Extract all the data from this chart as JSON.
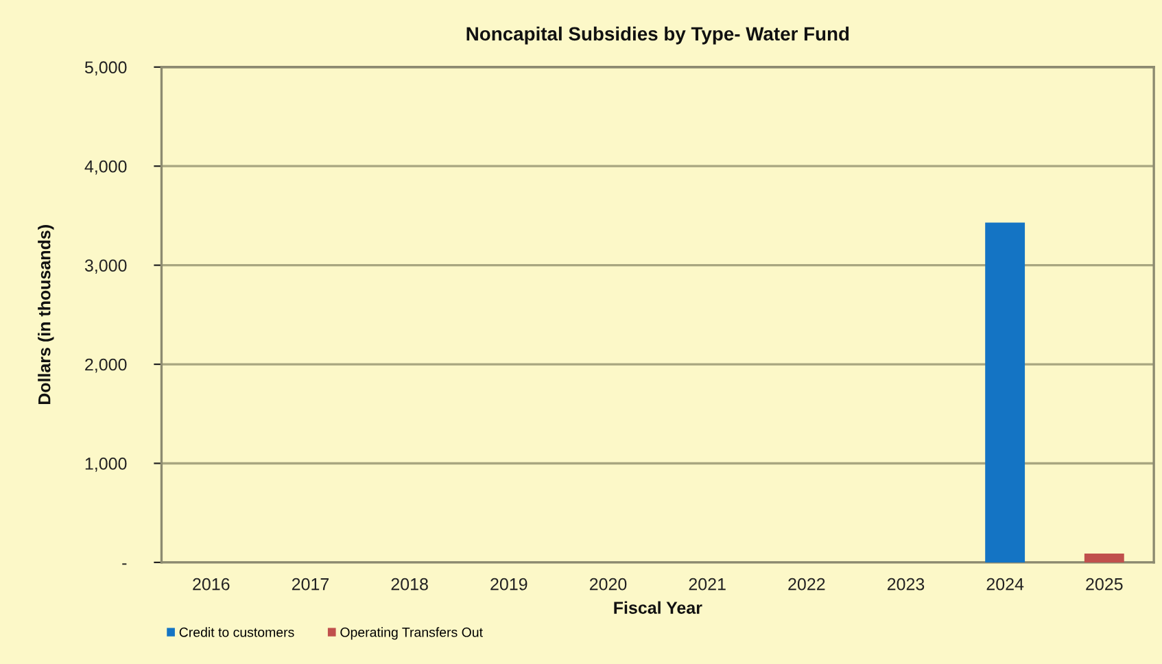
{
  "chart_data": {
    "type": "bar",
    "title": "Noncapital Subsidies by Type- Water Fund",
    "xlabel": "Fiscal Year",
    "ylabel": "Dollars (in thousands)",
    "categories": [
      "2016",
      "2017",
      "2018",
      "2019",
      "2020",
      "2021",
      "2022",
      "2023",
      "2024",
      "2025"
    ],
    "series": [
      {
        "name": "Credit to customers",
        "color": "#1474c4",
        "values": [
          null,
          null,
          null,
          null,
          null,
          null,
          null,
          null,
          3430,
          null
        ]
      },
      {
        "name": "Operating Transfers Out",
        "color": "#c0504d",
        "values": [
          null,
          null,
          null,
          null,
          null,
          null,
          null,
          null,
          null,
          90
        ]
      }
    ],
    "stacked": true,
    "ylim": [
      0,
      5000
    ],
    "yticks": [
      {
        "value": 0,
        "label": "-"
      },
      {
        "value": 1000,
        "label": "1,000"
      },
      {
        "value": 2000,
        "label": "2,000"
      },
      {
        "value": 3000,
        "label": "3,000"
      },
      {
        "value": 4000,
        "label": "4,000"
      },
      {
        "value": 5000,
        "label": "5,000"
      }
    ],
    "grid": "y",
    "legend": "bottom left"
  }
}
